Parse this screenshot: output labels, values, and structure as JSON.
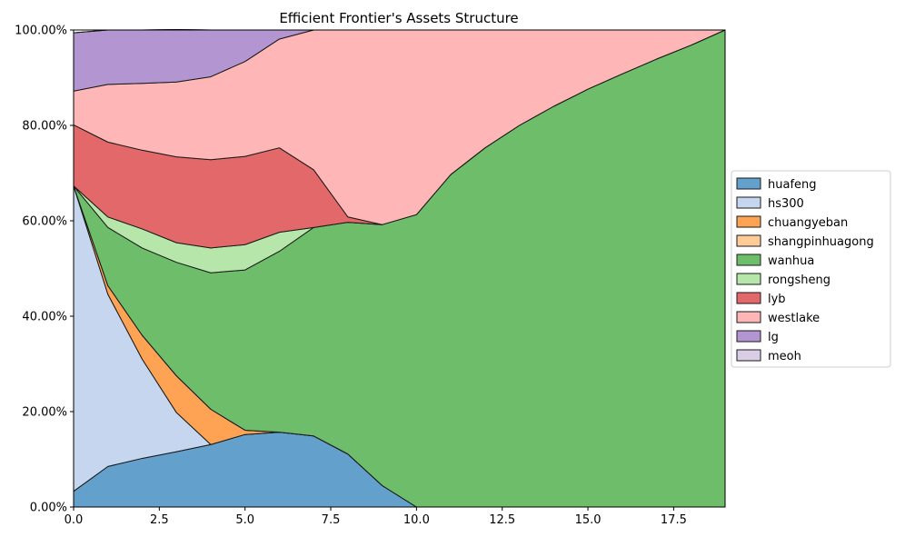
{
  "chart_data": {
    "type": "area",
    "stacked": true,
    "title": "Efficient Frontier's Assets Structure",
    "xlabel": "",
    "ylabel": "",
    "xlim": [
      0,
      19
    ],
    "ylim": [
      0,
      1
    ],
    "x_ticks": [
      0,
      2.5,
      5,
      7.5,
      10,
      12.5,
      15,
      17.5
    ],
    "x_tick_labels": [
      "0.0",
      "2.5",
      "5.0",
      "7.5",
      "10.0",
      "12.5",
      "15.0",
      "17.5"
    ],
    "y_ticks": [
      0,
      0.2,
      0.4,
      0.6,
      0.8,
      1.0
    ],
    "y_tick_labels": [
      "0.00%",
      "20.00%",
      "40.00%",
      "60.00%",
      "80.00%",
      "100.00%"
    ],
    "grid": true,
    "legend_position": "right",
    "x": [
      0,
      1,
      2,
      3,
      4,
      5,
      6,
      7,
      8,
      9,
      10,
      11,
      12,
      13,
      14,
      15,
      16,
      17,
      18,
      19
    ],
    "series": [
      {
        "name": "huafeng",
        "color": "#63a0cb",
        "values": [
          0.033,
          0.085,
          0.102,
          0.116,
          0.131,
          0.152,
          0.157,
          0.149,
          0.111,
          0.045,
          0,
          0,
          0,
          0,
          0,
          0,
          0,
          0,
          0,
          0
        ]
      },
      {
        "name": "hs300",
        "color": "#c6d6ee",
        "values": [
          0.64,
          0.361,
          0.208,
          0.082,
          0,
          0,
          0,
          0,
          0,
          0,
          0,
          0,
          0,
          0,
          0,
          0,
          0,
          0,
          0,
          0
        ]
      },
      {
        "name": "chuangyeban",
        "color": "#fea353",
        "values": [
          0,
          0.018,
          0.05,
          0.077,
          0.074,
          0.009,
          0,
          0,
          0,
          0,
          0,
          0,
          0,
          0,
          0,
          0,
          0,
          0,
          0,
          0
        ]
      },
      {
        "name": "shangpinhuagong",
        "color": "#ffcc98",
        "values": [
          0,
          0,
          0,
          0,
          0,
          0,
          0,
          0,
          0,
          0,
          0,
          0,
          0,
          0,
          0,
          0,
          0,
          0,
          0,
          0
        ]
      },
      {
        "name": "wanhua",
        "color": "#6dbd6a",
        "values": [
          0,
          0.122,
          0.183,
          0.238,
          0.286,
          0.336,
          0.379,
          0.437,
          0.486,
          0.547,
          0.613,
          0.697,
          0.753,
          0.8,
          0.84,
          0.876,
          0.908,
          0.939,
          0.968,
          1.0
        ]
      },
      {
        "name": "rongsheng",
        "color": "#b6e6aa",
        "values": [
          0,
          0.022,
          0.04,
          0.041,
          0.052,
          0.053,
          0.04,
          0,
          0,
          0,
          0,
          0,
          0,
          0,
          0,
          0,
          0,
          0,
          0,
          0
        ]
      },
      {
        "name": "lyb",
        "color": "#e3686a",
        "values": [
          0.128,
          0.157,
          0.165,
          0.18,
          0.185,
          0.185,
          0.177,
          0.121,
          0.011,
          0,
          0,
          0,
          0,
          0,
          0,
          0,
          0,
          0,
          0,
          0
        ]
      },
      {
        "name": "westlake",
        "color": "#feb6b7",
        "values": [
          0.071,
          0.121,
          0.14,
          0.157,
          0.174,
          0.199,
          0.228,
          0.293,
          0.392,
          0.408,
          0.387,
          0.303,
          0.247,
          0.2,
          0.16,
          0.124,
          0.092,
          0.061,
          0.032,
          0
        ]
      },
      {
        "name": "lg",
        "color": "#b396d1",
        "values": [
          0.122,
          0.114,
          0.112,
          0.11,
          0.098,
          0.066,
          0.019,
          0,
          0,
          0,
          0,
          0,
          0,
          0,
          0,
          0,
          0,
          0,
          0,
          0
        ]
      },
      {
        "name": "meoh",
        "color": "#d9cee6",
        "values": [
          0,
          0,
          0,
          0,
          0,
          0,
          0,
          0,
          0,
          0,
          0,
          0,
          0,
          0,
          0,
          0,
          0,
          0,
          0,
          0
        ]
      }
    ]
  }
}
